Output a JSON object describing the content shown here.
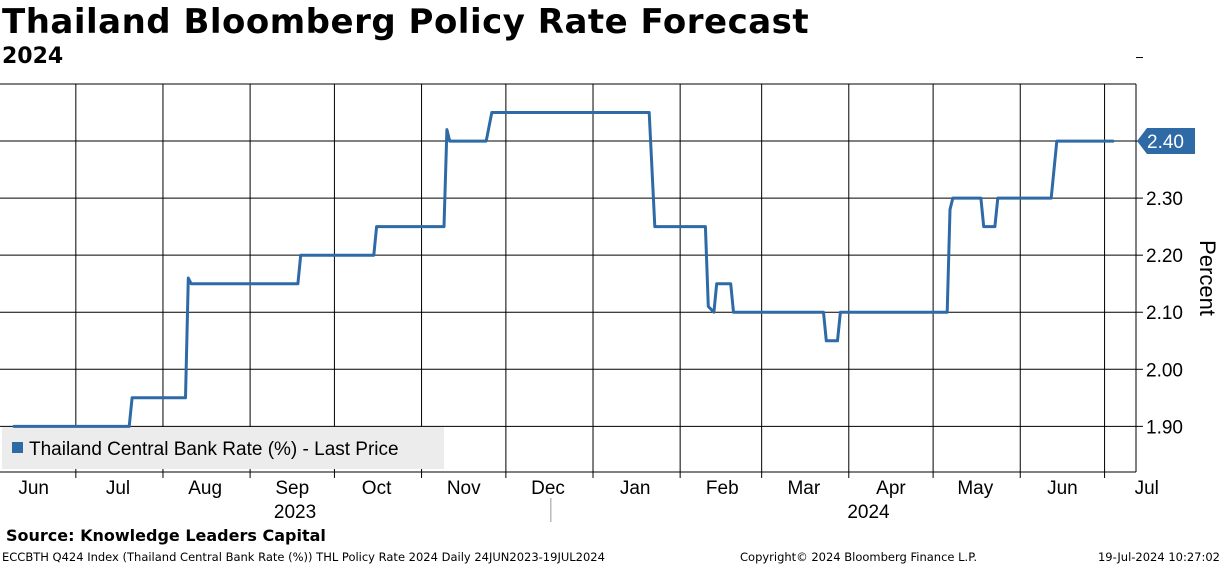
{
  "title": "Thailand Bloomberg Policy Rate Forecast",
  "subtitle": "2024",
  "source": "Source: Knowledge Leaders Capital",
  "footer": {
    "left": "ECCBTH Q424 Index (Thailand Central Bank Rate (%)) THL Policy Rate 2024  Daily 24JUN2023-19JUL2024",
    "middle": "Copyright© 2024 Bloomberg Finance L.P.",
    "right": "19-Jul-2024 10:27:02"
  },
  "chart_data": {
    "type": "line",
    "title": "Thailand Bloomberg Policy Rate Forecast",
    "subtitle": "2024",
    "ylabel": "Percent",
    "ylim": [
      1.82,
      2.5
    ],
    "yticks": [
      "1.90",
      "2.00",
      "2.10",
      "2.20",
      "2.30",
      "2.40"
    ],
    "last_value_label": "2.40",
    "xlim": [
      0,
      391
    ],
    "month_ticks": [
      {
        "label": "Jun",
        "x": 7
      },
      {
        "label": "Jul",
        "x": 37
      },
      {
        "label": "Aug",
        "x": 68
      },
      {
        "label": "Sep",
        "x": 99
      },
      {
        "label": "Oct",
        "x": 129
      },
      {
        "label": "Nov",
        "x": 160
      },
      {
        "label": "Dec",
        "x": 190
      },
      {
        "label": "Jan",
        "x": 221
      },
      {
        "label": "Feb",
        "x": 252
      },
      {
        "label": "Mar",
        "x": 281
      },
      {
        "label": "Apr",
        "x": 312
      },
      {
        "label": "May",
        "x": 342
      },
      {
        "label": "Jun",
        "x": 373
      },
      {
        "label": "Jul",
        "x": 403
      }
    ],
    "month_gridlines": [
      22,
      53,
      84,
      114,
      145,
      175,
      206,
      237,
      266,
      297,
      327,
      358,
      388
    ],
    "years": [
      {
        "label": "2023",
        "x": 100
      },
      {
        "label": "2024",
        "x": 304
      }
    ],
    "year_divider_x": 191,
    "legend_position": "bottom-left",
    "series": [
      {
        "name": "Thailand Central Bank Rate (%) - Last Price",
        "color": "#2e6aa6",
        "x": [
          0,
          41,
          42,
          61,
          62,
          63,
          101,
          102,
          128,
          129,
          153,
          154,
          155,
          156,
          168,
          170,
          226,
          228,
          246,
          247,
          249,
          250,
          255,
          256,
          288,
          289,
          293,
          294,
          296,
          332,
          333,
          334,
          344,
          345,
          349,
          350,
          369,
          371,
          391
        ],
        "values": [
          1.9,
          1.9,
          1.95,
          1.95,
          2.16,
          2.15,
          2.15,
          2.2,
          2.2,
          2.25,
          2.25,
          2.42,
          2.4,
          2.4,
          2.4,
          2.45,
          2.45,
          2.25,
          2.25,
          2.11,
          2.1,
          2.15,
          2.15,
          2.1,
          2.1,
          2.05,
          2.05,
          2.1,
          2.1,
          2.1,
          2.28,
          2.3,
          2.3,
          2.25,
          2.25,
          2.3,
          2.3,
          2.4,
          2.4
        ]
      }
    ]
  }
}
